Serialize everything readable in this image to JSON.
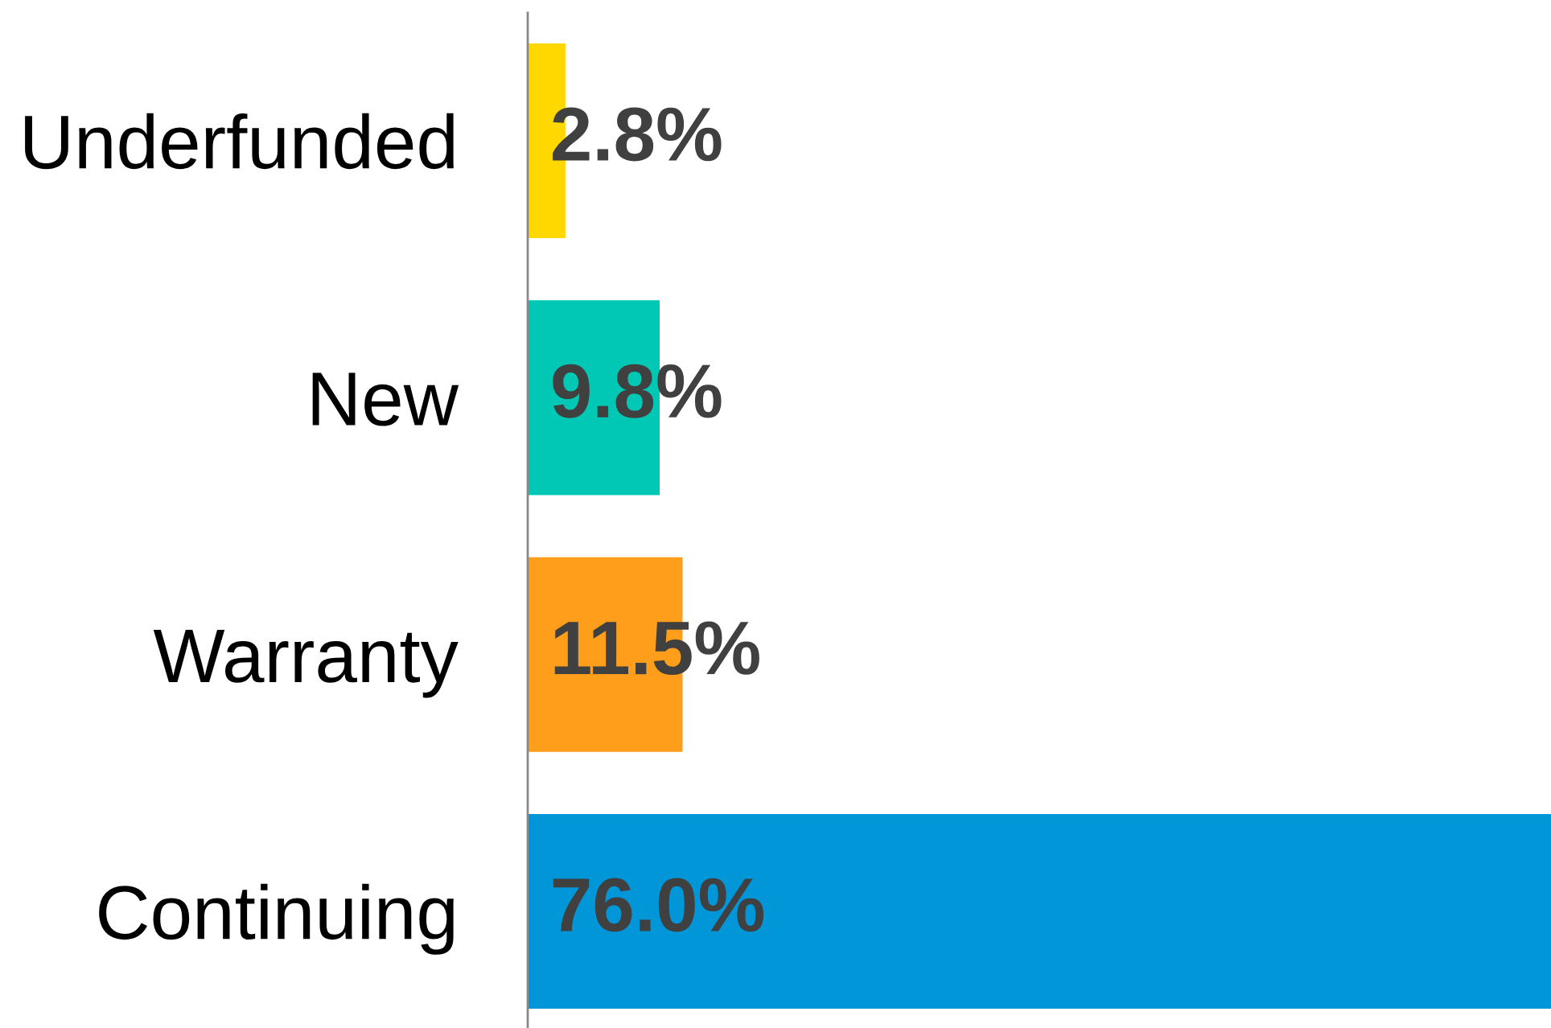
{
  "chart_data": {
    "type": "bar",
    "orientation": "horizontal",
    "categories": [
      "Underfunded",
      "New",
      "Warranty",
      "Continuing"
    ],
    "values": [
      2.8,
      9.8,
      11.5,
      76.0
    ],
    "colors": [
      "#ffd800",
      "#00c8b4",
      "#ff9e1b",
      "#0096d8"
    ],
    "value_labels": [
      "2.8%",
      "9.8%",
      "11.5%",
      "76.0%"
    ],
    "xlim": [
      0,
      76
    ],
    "tick_labels": "y",
    "grid": false
  }
}
